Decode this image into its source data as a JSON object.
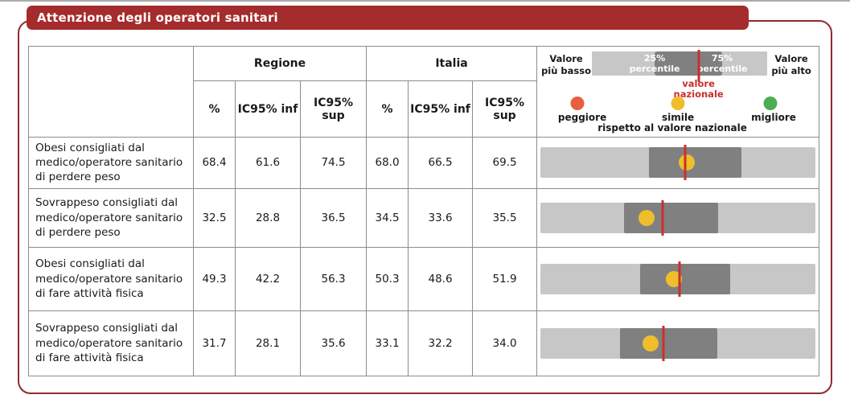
{
  "title": "Attenzione degli operatori sanitari",
  "colors": {
    "banner_red": "#A52C2C",
    "frame_red": "#8F2B2E",
    "bar_light_gray": "#C7C7C7",
    "bar_dark_gray": "#808080",
    "national_line_red": "#C9302C",
    "dot_yellow": "#EFBE2A",
    "dot_orange": "#E7603F",
    "dot_green": "#4CAE50"
  },
  "table": {
    "groups": [
      "Regione",
      "Italia"
    ],
    "subheaders": [
      "%",
      "IC95% inf",
      "IC95% sup",
      "%",
      "IC95% inf",
      "IC95% sup"
    ],
    "rows": [
      {
        "label": "Obesi consigliati dal medico/operatore sanitario di perdere peso",
        "values": [
          "68.4",
          "61.6",
          "74.5",
          "68.0",
          "66.5",
          "69.5"
        ],
        "bar": {
          "band_start": 39.5,
          "band_end": 73.0,
          "line_pos": 52.7,
          "dot_pos": 53.3,
          "dot_color": "#EFBE2A"
        }
      },
      {
        "label": "Sovrappeso consigliati dal medico/operatore sanitario di perdere peso",
        "values": [
          "32.5",
          "28.8",
          "36.5",
          "34.5",
          "33.6",
          "35.5"
        ],
        "bar": {
          "band_start": 30.4,
          "band_end": 64.6,
          "line_pos": 44.3,
          "dot_pos": 38.6,
          "dot_color": "#EFBE2A"
        }
      },
      {
        "label": "Obesi consigliati dal medico/operatore sanitario di fare attività fisica",
        "values": [
          "49.3",
          "42.2",
          "56.3",
          "50.3",
          "48.6",
          "51.9"
        ],
        "bar": {
          "band_start": 36.2,
          "band_end": 69.0,
          "line_pos": 50.7,
          "dot_pos": 48.4,
          "dot_color": "#EFBE2A"
        }
      },
      {
        "label": "Sovrappeso consigliati dal medico/operatore sanitario di fare attività fisica",
        "values": [
          "31.7",
          "28.1",
          "35.6",
          "33.1",
          "32.2",
          "34.0"
        ],
        "bar": {
          "band_start": 29.0,
          "band_end": 64.3,
          "line_pos": 44.6,
          "dot_pos": 40.0,
          "dot_color": "#EFBE2A"
        }
      }
    ]
  },
  "legend": {
    "left_label": "Valore\npiù basso",
    "right_label": "Valore\npiù alto",
    "p25": "25%\npercentile",
    "p75": "75%\npercentile",
    "national": "valore\nnazionale",
    "worse": "peggiore",
    "similar": "simile",
    "better": "migliore",
    "similar_note": "rispetto al valore nazionale",
    "bar": {
      "band_start": 35.8,
      "band_end": 74.3,
      "line_pos": 61.0
    }
  },
  "chart_data": {
    "type": "table",
    "title": "Attenzione degli operatori sanitari",
    "column_groups": [
      "Regione",
      "Italia"
    ],
    "columns": [
      "%",
      "IC95% inf",
      "IC95% sup",
      "%",
      "IC95% inf",
      "IC95% sup"
    ],
    "rows": [
      {
        "indicator": "Obesi consigliati dal medico/operatore sanitario di perdere peso",
        "regione": {
          "pct": 68.4,
          "ic95_inf": 61.6,
          "ic95_sup": 74.5
        },
        "italia": {
          "pct": 68.0,
          "ic95_inf": 66.5,
          "ic95_sup": 69.5
        },
        "confronto_con_valore_nazionale": "simile"
      },
      {
        "indicator": "Sovrappeso consigliati dal medico/operatore sanitario di perdere peso",
        "regione": {
          "pct": 32.5,
          "ic95_inf": 28.8,
          "ic95_sup": 36.5
        },
        "italia": {
          "pct": 34.5,
          "ic95_inf": 33.6,
          "ic95_sup": 35.5
        },
        "confronto_con_valore_nazionale": "simile"
      },
      {
        "indicator": "Obesi consigliati dal medico/operatore sanitario di fare attività fisica",
        "regione": {
          "pct": 49.3,
          "ic95_inf": 42.2,
          "ic95_sup": 56.3
        },
        "italia": {
          "pct": 50.3,
          "ic95_inf": 48.6,
          "ic95_sup": 51.9
        },
        "confronto_con_valore_nazionale": "simile"
      },
      {
        "indicator": "Sovrappeso consigliati dal medico/operatore sanitario di fare attività fisica",
        "regione": {
          "pct": 31.7,
          "ic95_inf": 28.1,
          "ic95_sup": 35.6
        },
        "italia": {
          "pct": 33.1,
          "ic95_inf": 32.2,
          "ic95_sup": 34.0
        },
        "confronto_con_valore_nazionale": "simile"
      }
    ],
    "legend": {
      "bar_meaning": "25%-75% percentile band with national value line",
      "dot_colors": {
        "peggiore": "#E7603F",
        "simile": "#EFBE2A",
        "migliore": "#4CAE50"
      }
    }
  }
}
